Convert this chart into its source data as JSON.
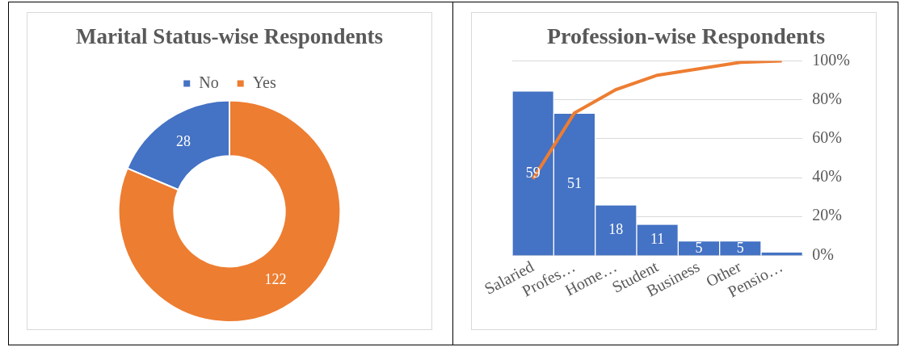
{
  "chart_data": [
    {
      "type": "donut",
      "title": "Marital Status-wise Respondents",
      "categories": [
        "No",
        "Yes"
      ],
      "values": [
        28,
        122
      ],
      "colors": [
        "#4472c4",
        "#ed7d31"
      ],
      "data_labels": true,
      "legend": "top"
    },
    {
      "type": "bar",
      "title": "Profession-wise Respondents",
      "categories": [
        "Salaried",
        "Profes…",
        "Home…",
        "Student",
        "Business",
        "Other",
        "Pensio…"
      ],
      "series": [
        {
          "type": "bar",
          "color": "#4472c4",
          "values": [
            59,
            51,
            18,
            11,
            5,
            5,
            1
          ],
          "value_labels": [
            "59",
            "51",
            "18",
            "11",
            "5",
            "5",
            null
          ]
        },
        {
          "type": "line",
          "axis": "y2",
          "color": "#ed7d31",
          "values": [
            39.3,
            73.3,
            85.3,
            92.7,
            96,
            99.3,
            100
          ]
        }
      ],
      "y2lim": [
        0,
        100
      ],
      "y2ticks": [
        {
          "value": 0,
          "label": "0%"
        },
        {
          "value": 20,
          "label": "20%"
        },
        {
          "value": 40,
          "label": "40%"
        },
        {
          "value": 60,
          "label": "60%"
        },
        {
          "value": 80,
          "label": "80%"
        },
        {
          "value": 100,
          "label": "100%"
        }
      ],
      "grid": "y",
      "marker": "none",
      "legend": false
    }
  ]
}
